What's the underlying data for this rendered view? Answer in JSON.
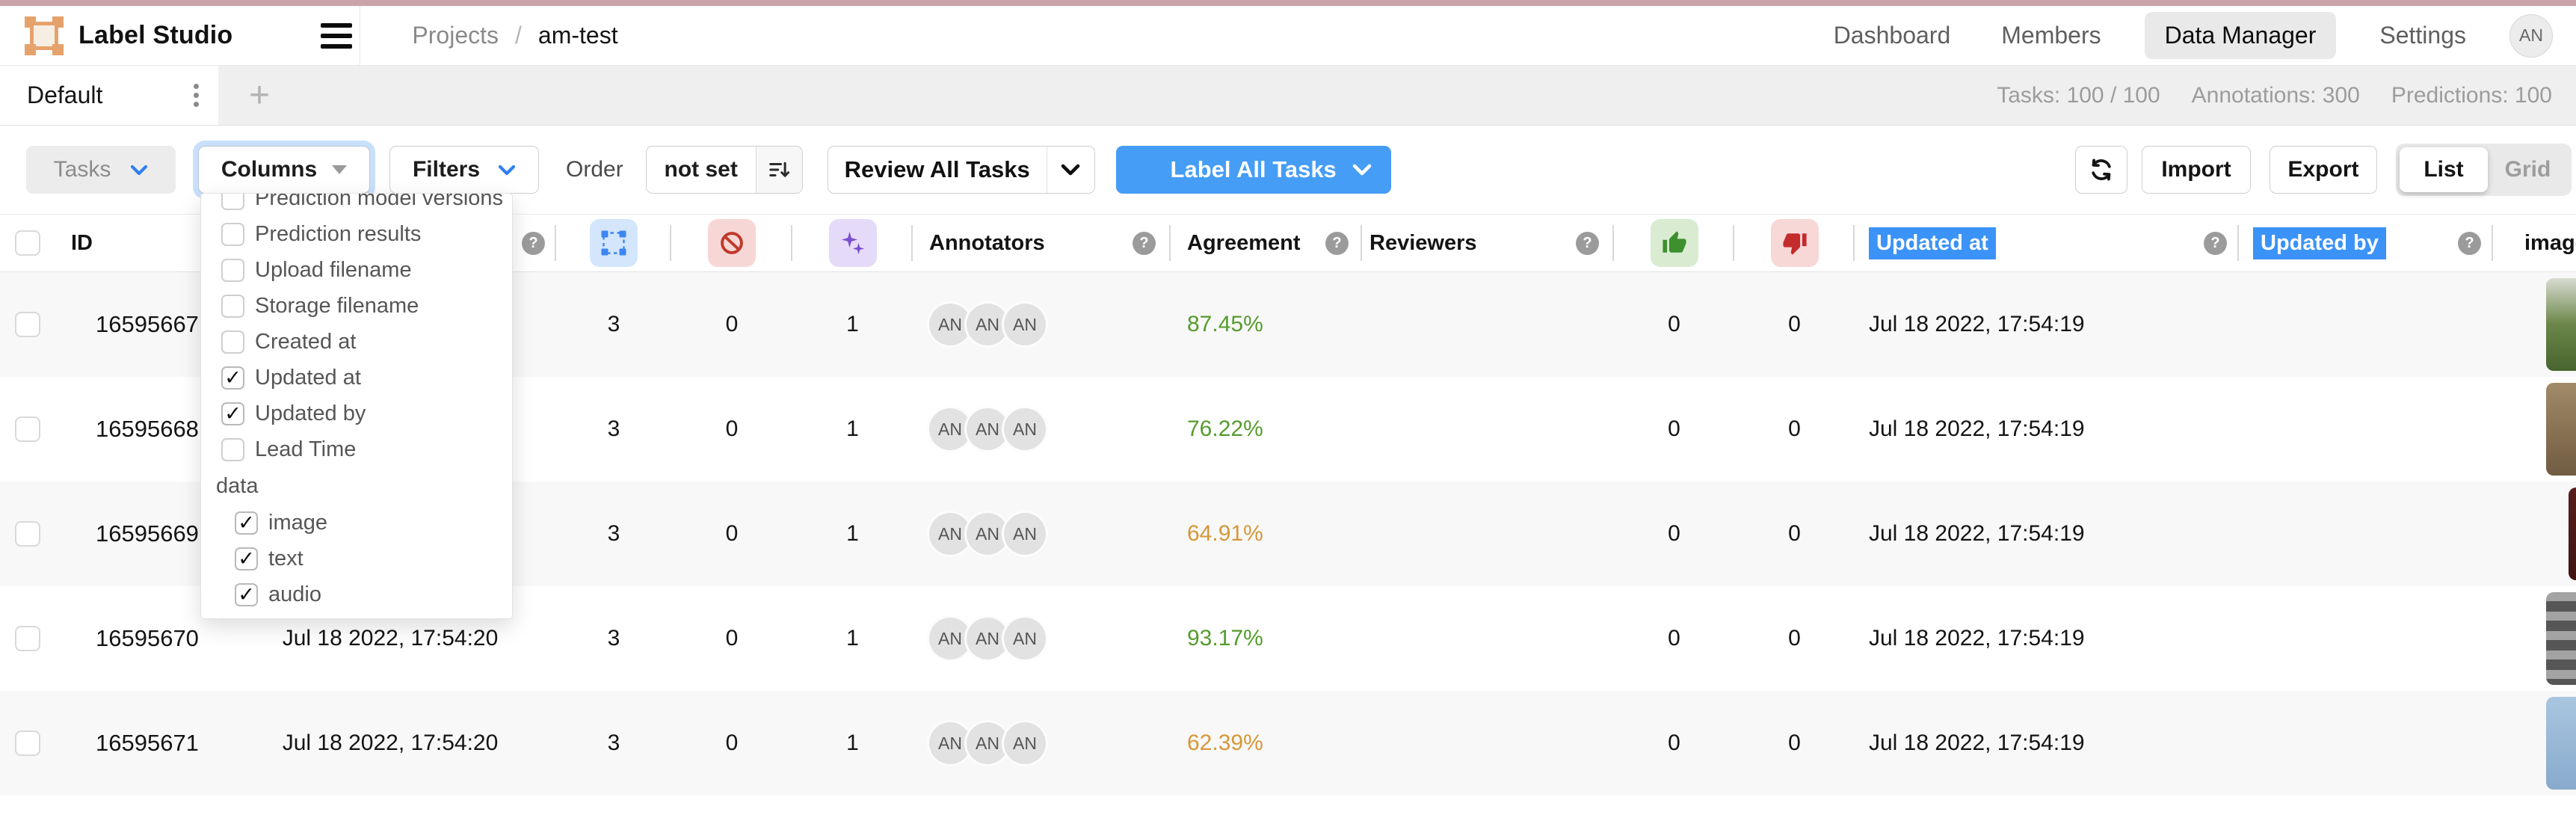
{
  "topbar": {
    "app_name": "Label Studio",
    "breadcrumb": {
      "root": "Projects",
      "separator": "/",
      "current": "am-test"
    },
    "nav": [
      {
        "label": "Dashboard",
        "active": false
      },
      {
        "label": "Members",
        "active": false
      },
      {
        "label": "Data Manager",
        "active": true
      },
      {
        "label": "Settings",
        "active": false
      }
    ],
    "avatar_initials": "AN"
  },
  "tabs_row": {
    "active_tab": "Default",
    "add_tab_label": "+",
    "stats": {
      "tasks": "Tasks: 100 / 100",
      "annotations": "Annotations: 300",
      "predictions": "Predictions: 100"
    }
  },
  "toolbar": {
    "tasks_button": "Tasks",
    "columns_button": "Columns",
    "filters_button": "Filters",
    "order_label": "Order",
    "order_value": "not set",
    "review_button": "Review All Tasks",
    "label_button": "Label All Tasks",
    "import_button": "Import",
    "export_button": "Export",
    "view_toggle": {
      "list": "List",
      "grid": "Grid",
      "active": "List"
    }
  },
  "columns_dropdown": {
    "items": [
      {
        "label": "Prediction model versions",
        "checked": false,
        "clipped": true
      },
      {
        "label": "Prediction results",
        "checked": false
      },
      {
        "label": "Upload filename",
        "checked": false
      },
      {
        "label": "Storage filename",
        "checked": false
      },
      {
        "label": "Created at",
        "checked": false
      },
      {
        "label": "Updated at",
        "checked": true
      },
      {
        "label": "Updated by",
        "checked": true
      },
      {
        "label": "Lead Time",
        "checked": false
      }
    ],
    "section_label": "data",
    "data_items": [
      {
        "label": "image",
        "checked": true
      },
      {
        "label": "text",
        "checked": true
      },
      {
        "label": "audio",
        "checked": true
      }
    ]
  },
  "table": {
    "headers": {
      "id": "ID",
      "annotators": "Annotators",
      "agreement": "Agreement",
      "reviewers": "Reviewers",
      "updated_at": "Updated at",
      "updated_by": "Updated by",
      "image": "image",
      "icons": [
        "annotations-count-icon",
        "skipped-count-icon",
        "predictions-count-icon",
        "approved-count-icon",
        "rejected-count-icon"
      ],
      "help_icon": "?"
    },
    "agreement_colors": {
      "green": "#559b2e",
      "orange": "#d69739"
    },
    "rows": [
      {
        "id": "16595667",
        "completed": "",
        "annotations": "3",
        "skipped": "0",
        "predictions": "1",
        "annotators": [
          "AN",
          "AN",
          "AN"
        ],
        "agreement": "87.45%",
        "agreement_color": "green",
        "reviewers": "",
        "approved": "0",
        "rejected": "0",
        "updated_at": "Jul 18 2022, 17:54:19",
        "updated_by": "",
        "thumb": {
          "width": 40,
          "striped": false,
          "colors": [
            "#d8dcd2",
            "#6b8648",
            "#49652f"
          ]
        }
      },
      {
        "id": "16595668",
        "completed": "",
        "annotations": "3",
        "skipped": "0",
        "predictions": "1",
        "annotators": [
          "AN",
          "AN",
          "AN"
        ],
        "agreement": "76.22%",
        "agreement_color": "green",
        "reviewers": "",
        "approved": "0",
        "rejected": "0",
        "updated_at": "Jul 18 2022, 17:54:19",
        "updated_by": "",
        "thumb": {
          "width": 40,
          "striped": false,
          "colors": [
            "#a08a68",
            "#8a7354",
            "#6f5c42"
          ]
        }
      },
      {
        "id": "16595669",
        "completed": "",
        "annotations": "3",
        "skipped": "0",
        "predictions": "1",
        "annotators": [
          "AN",
          "AN",
          "AN"
        ],
        "agreement": "64.91%",
        "agreement_color": "orange",
        "reviewers": "",
        "approved": "0",
        "rejected": "0",
        "updated_at": "Jul 18 2022, 17:54:19",
        "updated_by": "",
        "thumb": {
          "width": 10,
          "striped": false,
          "colors": [
            "#571e1c",
            "#3f1513"
          ]
        }
      },
      {
        "id": "16595670",
        "completed": "Jul 18 2022, 17:54:20",
        "annotations": "3",
        "skipped": "0",
        "predictions": "1",
        "annotators": [
          "AN",
          "AN",
          "AN"
        ],
        "agreement": "93.17%",
        "agreement_color": "green",
        "reviewers": "",
        "approved": "0",
        "rejected": "0",
        "updated_at": "Jul 18 2022, 17:54:19",
        "updated_by": "",
        "thumb": {
          "width": 40,
          "striped": true,
          "colors": [
            "#a3a3a3",
            "#565656"
          ]
        }
      },
      {
        "id": "16595671",
        "completed": "Jul 18 2022, 17:54:20",
        "annotations": "3",
        "skipped": "0",
        "predictions": "1",
        "annotators": [
          "AN",
          "AN",
          "AN"
        ],
        "agreement": "62.39%",
        "agreement_color": "orange",
        "reviewers": "",
        "approved": "0",
        "rejected": "0",
        "updated_at": "Jul 18 2022, 17:54:19",
        "updated_by": "",
        "thumb": {
          "width": 40,
          "striped": false,
          "colors": [
            "#a9c6e0",
            "#88aacc"
          ]
        }
      }
    ]
  }
}
